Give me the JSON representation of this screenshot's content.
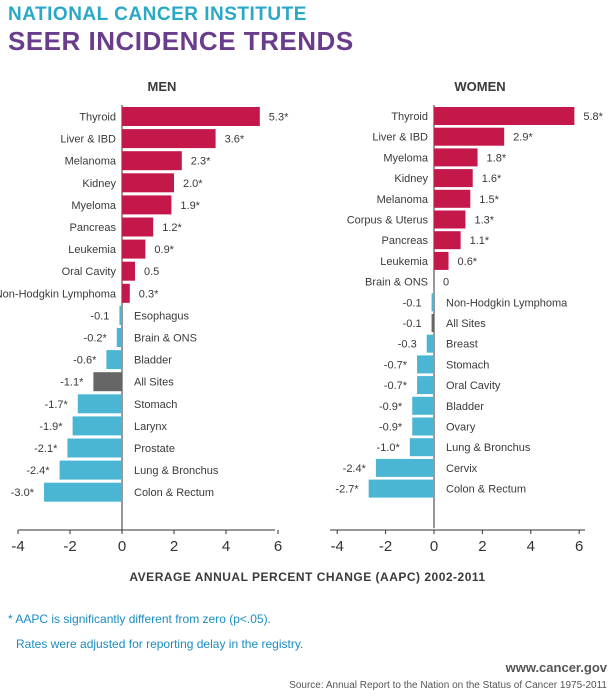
{
  "header": {
    "org": "NATIONAL CANCER INSTITUTE",
    "title": "SEER INCIDENCE TRENDS"
  },
  "colors": {
    "positive": "#c4174a",
    "negative": "#4ab6d4",
    "all_sites": "#666666",
    "text": "#3a3a3a"
  },
  "chart_data": [
    {
      "type": "bar",
      "orientation": "horizontal",
      "title": "MEN",
      "xlim": [
        -4,
        6
      ],
      "xticks": [
        "-4",
        "-2",
        "0",
        "2",
        "4",
        "6"
      ],
      "categories": [
        "Thyroid",
        "Liver & IBD",
        "Melanoma",
        "Kidney",
        "Myeloma",
        "Pancreas",
        "Leukemia",
        "Oral Cavity",
        "Non-Hodgkin Lymphoma",
        "Esophagus",
        "Brain & ONS",
        "Bladder",
        "All Sites",
        "Stomach",
        "Larynx",
        "Prostate",
        "Lung & Bronchus",
        "Colon & Rectum"
      ],
      "values": [
        5.3,
        3.6,
        2.3,
        2.0,
        1.9,
        1.2,
        0.9,
        0.5,
        0.3,
        -0.1,
        -0.2,
        -0.6,
        -1.1,
        -1.7,
        -1.9,
        -2.1,
        -2.4,
        -3.0
      ],
      "labels": [
        "5.3*",
        "3.6*",
        "2.3*",
        "2.0*",
        "1.9*",
        "1.2*",
        "0.9*",
        "0.5",
        "0.3*",
        "-0.1",
        "-0.2*",
        "-0.6*",
        "-1.1*",
        "-1.7*",
        "-1.9*",
        "-2.1*",
        "-2.4*",
        "-3.0*"
      ]
    },
    {
      "type": "bar",
      "orientation": "horizontal",
      "title": "WOMEN",
      "xlim": [
        -4,
        6
      ],
      "xticks": [
        "-4",
        "-2",
        "0",
        "2",
        "4",
        "6"
      ],
      "categories": [
        "Thyroid",
        "Liver & IBD",
        "Myeloma",
        "Kidney",
        "Melanoma",
        "Corpus & Uterus",
        "Pancreas",
        "Leukemia",
        "Brain & ONS",
        "Non-Hodgkin Lymphoma",
        "All Sites",
        "Breast",
        "Stomach",
        "Oral Cavity",
        "Bladder",
        "Ovary",
        "Lung & Bronchus",
        "Cervix",
        "Colon & Rectum"
      ],
      "values": [
        5.8,
        2.9,
        1.8,
        1.6,
        1.5,
        1.3,
        1.1,
        0.6,
        0,
        -0.1,
        -0.1,
        -0.3,
        -0.7,
        -0.7,
        -0.9,
        -0.9,
        -1.0,
        -2.4,
        -2.7
      ],
      "labels": [
        "5.8*",
        "2.9*",
        "1.8*",
        "1.6*",
        "1.5*",
        "1.3*",
        "1.1*",
        "0.6*",
        "0",
        "-0.1",
        "-0.1",
        "-0.3",
        "-0.7*",
        "-0.7*",
        "-0.9*",
        "-0.9*",
        "-1.0*",
        "-2.4*",
        "-2.7*"
      ]
    }
  ],
  "x_axis_title": "AVERAGE ANNUAL PERCENT CHANGE (AAPC) 2002-2011",
  "footnotes": {
    "significance": "* AAPC is significantly different from zero (p<.05).",
    "adjustment": "Rates were adjusted for reporting delay in the registry."
  },
  "website": "www.cancer.gov",
  "source": "Source: Annual Report to the Nation on the Status of Cancer 1975-2011"
}
